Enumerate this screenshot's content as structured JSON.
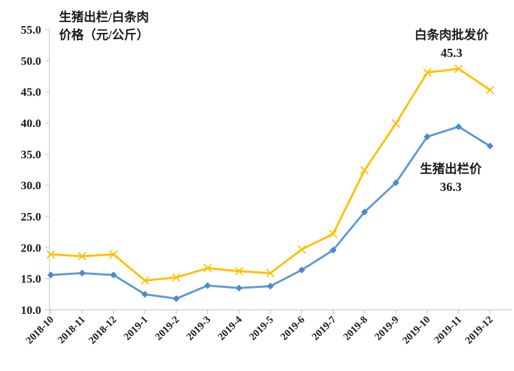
{
  "chart_data": {
    "type": "line",
    "title": "生猪出栏/白条肉价格（元/公斤）",
    "axis_title": {
      "line1": "生猪出栏/白条肉",
      "line2": "价格（元/公斤）"
    },
    "categories": [
      "2018-10",
      "2018-11",
      "2018-12",
      "2019-1",
      "2019-2",
      "2019-3",
      "2019-4",
      "2019-5",
      "2019-6",
      "2019-7",
      "2019-8",
      "2019-9",
      "2019-10",
      "2019-11",
      "2019-12"
    ],
    "series": [
      {
        "name": "白条肉批发价",
        "color": "#FFC000",
        "marker": "x",
        "line_width": 3,
        "values": [
          18.9,
          18.6,
          18.9,
          14.7,
          15.2,
          16.7,
          16.2,
          15.9,
          19.7,
          22.2,
          32.4,
          39.9,
          48.1,
          48.7,
          45.3
        ]
      },
      {
        "name": "生猪出栏价",
        "color": "#5B9BD5",
        "marker": "diamond",
        "marker_fill": "#4E8AC8",
        "line_width": 3,
        "values": [
          15.6,
          15.9,
          15.6,
          12.5,
          11.8,
          13.9,
          13.5,
          13.8,
          16.4,
          19.6,
          25.7,
          30.4,
          37.8,
          39.4,
          36.3
        ]
      }
    ],
    "annotations": [
      {
        "series": "白条肉批发价",
        "label": "白条肉批发价",
        "value": "45.3"
      },
      {
        "series": "生猪出栏价",
        "label": "生猪出栏价",
        "value": "36.3"
      }
    ],
    "y_axis": {
      "min": 10,
      "max": 55,
      "step": 5,
      "tick_labels": [
        "55.0",
        "50.0",
        "45.0",
        "40.0",
        "35.0",
        "30.0",
        "25.0",
        "20.0",
        "15.0",
        "10.0"
      ]
    },
    "x_axis": {
      "label_rotation_deg": -45
    },
    "grid": false,
    "legend_position": "none",
    "colors": {
      "axis_line": "#BFBFBF",
      "tick": "#BFBFBF",
      "text": "#1a1a1a",
      "background": "#ffffff"
    }
  }
}
